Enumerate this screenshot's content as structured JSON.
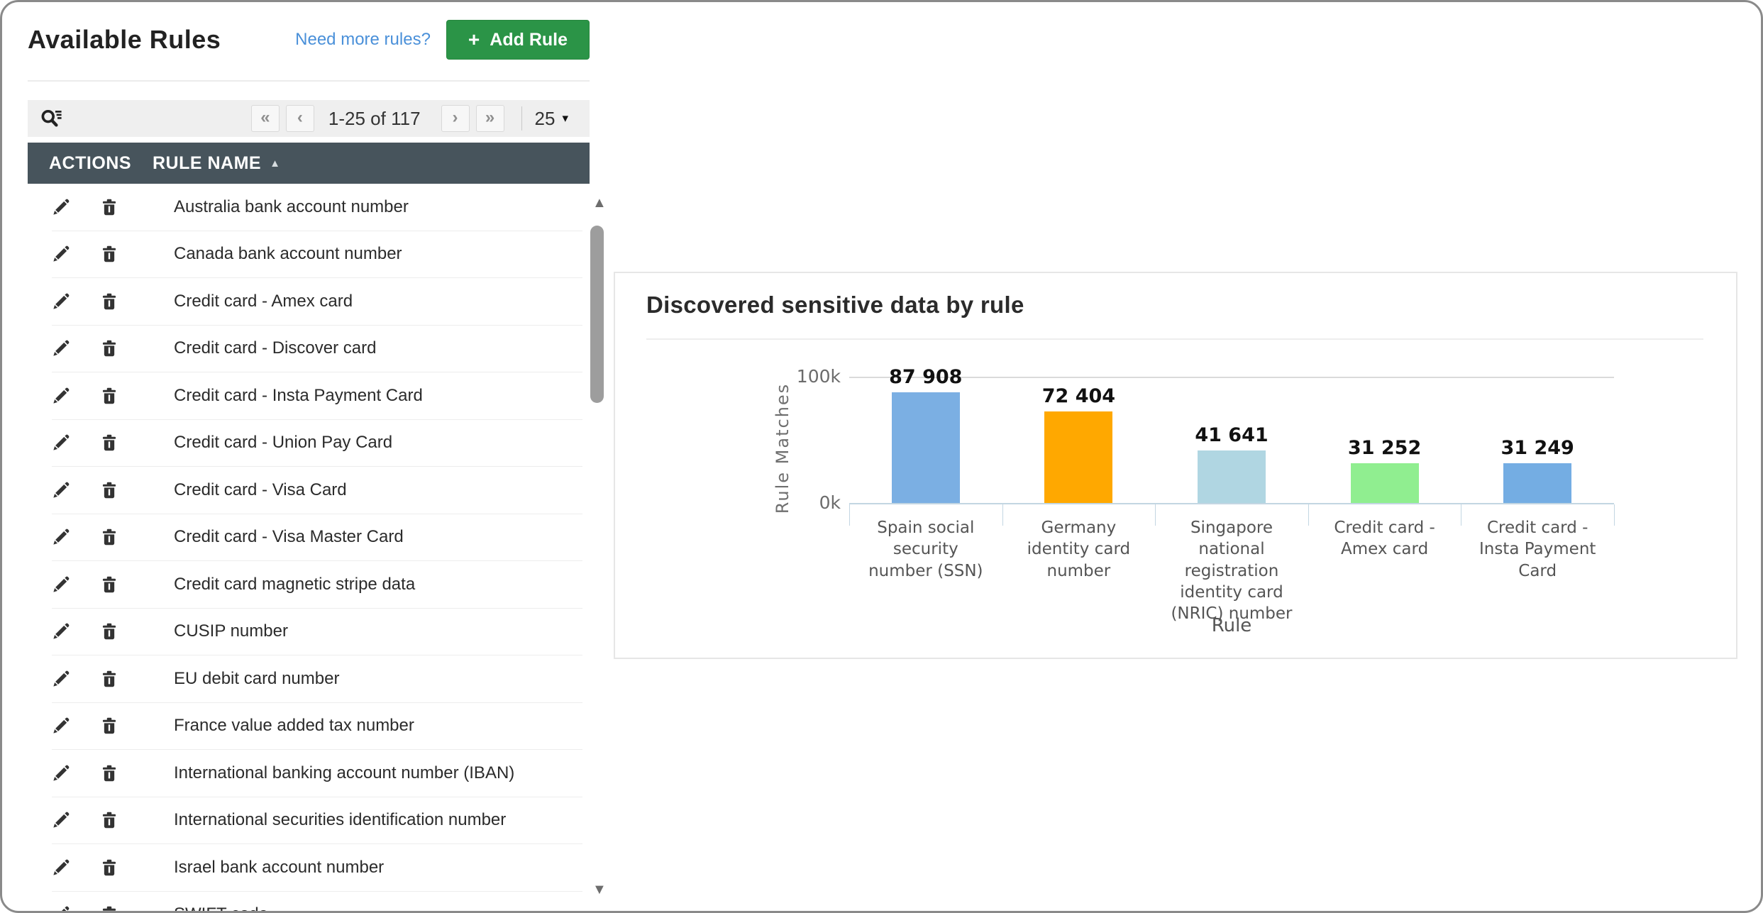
{
  "left_panel": {
    "title": "Available Rules",
    "link": "Need more rules?",
    "add_button": {
      "label": "Add Rule",
      "icon": "+"
    },
    "pagination": {
      "first_icon": "«",
      "prev_icon": "‹",
      "range": "1-25 of 117",
      "next_icon": "›",
      "last_icon": "»",
      "page_size": "25",
      "caret_icon": "▾"
    },
    "table": {
      "columns": [
        "ACTIONS",
        "RULE NAME"
      ],
      "sort_icon": "▲",
      "rows": [
        "Australia bank account number",
        "Canada bank account number",
        "Credit card - Amex card",
        "Credit card - Discover card",
        "Credit card - Insta Payment Card",
        "Credit card - Union Pay Card",
        "Credit card - Visa Card",
        "Credit card - Visa Master Card",
        "Credit card magnetic stripe data",
        "CUSIP number",
        "EU debit card number",
        "France value added tax number",
        "International banking account number (IBAN)",
        "International securities identification number",
        "Israel bank account number",
        "SWIFT code"
      ]
    },
    "scrollbar": {
      "up_icon": "▲",
      "down_icon": "▼"
    }
  },
  "chart_data": {
    "type": "bar",
    "title": "Discovered sensitive data by rule",
    "categories": [
      "Spain social security number (SSN)",
      "Germany identity card number",
      "Singapore national registration identity card (NRIC) number",
      "Credit card - Amex card",
      "Credit card - Insta Payment Card"
    ],
    "values": [
      87908,
      72404,
      41641,
      31252,
      31249
    ],
    "value_labels": [
      "87 908",
      "72 404",
      "41 641",
      "31 252",
      "31 249"
    ],
    "bar_colors": [
      "#7bafe3",
      "#ffa800",
      "#b0d6e2",
      "#90ee90",
      "#74ade3"
    ],
    "xlabel": "Rule",
    "ylabel": "Rule Matches",
    "ylim": [
      0,
      100000
    ],
    "yticks": [
      "100k",
      "0k"
    ],
    "legend": "none",
    "grid": "single top gridline at 100k"
  },
  "colors": {
    "accent_green": "#2b9447",
    "link_blue": "#4a90d9",
    "table_header_bg": "#47545c",
    "toolbar_bg": "#efefef",
    "axis_blue": "#c3d6e2"
  }
}
